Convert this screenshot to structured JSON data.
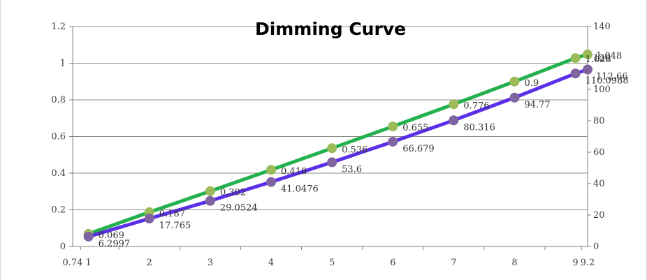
{
  "chart_data": {
    "type": "line",
    "title": "Dimming Curve",
    "x": [
      1,
      2,
      3,
      4,
      5,
      6,
      7,
      8,
      9,
      9.2
    ],
    "x_tick_labels": [
      "0.74",
      "1",
      "2",
      "3",
      "4",
      "5",
      "6",
      "7",
      "8",
      "9",
      "9.2"
    ],
    "x_tick_values": [
      0.74,
      1,
      2,
      3,
      4,
      5,
      6,
      7,
      8,
      9,
      9.2
    ],
    "ylim_left": [
      0,
      1.2
    ],
    "y_left_ticks": [
      "0",
      "0.2",
      "0.4",
      "0.6",
      "0.8",
      "1",
      "1.2"
    ],
    "ylim_right": [
      0,
      140
    ],
    "y_right_ticks": [
      "0",
      "20",
      "40",
      "60",
      "80",
      "100",
      "120",
      "140"
    ],
    "grid": true,
    "series": [
      {
        "axis": "left",
        "color": "#22b14c",
        "marker_color": "#9bbb59",
        "values": [
          0.069,
          0.187,
          0.302,
          0.418,
          0.536,
          0.655,
          0.776,
          0.9,
          1.028,
          1.048
        ],
        "labels": [
          "0.069",
          "0.187",
          "0.302",
          "0.418",
          "0.536",
          "0.655",
          "0.776",
          "0.9",
          "1.028",
          "1.048"
        ]
      },
      {
        "axis": "right",
        "color": "#5b2ee8",
        "marker_color": "#8064a2",
        "values": [
          6.2997,
          17.765,
          29.0524,
          41.0476,
          53.6,
          66.679,
          80.316,
          94.77,
          110.0988,
          112.66
        ],
        "labels": [
          "6.2997",
          "17.765",
          "29.0524",
          "41.0476",
          "53.6",
          "66.679",
          "80.316",
          "94.77",
          "110.0988",
          "112.66"
        ]
      }
    ]
  }
}
